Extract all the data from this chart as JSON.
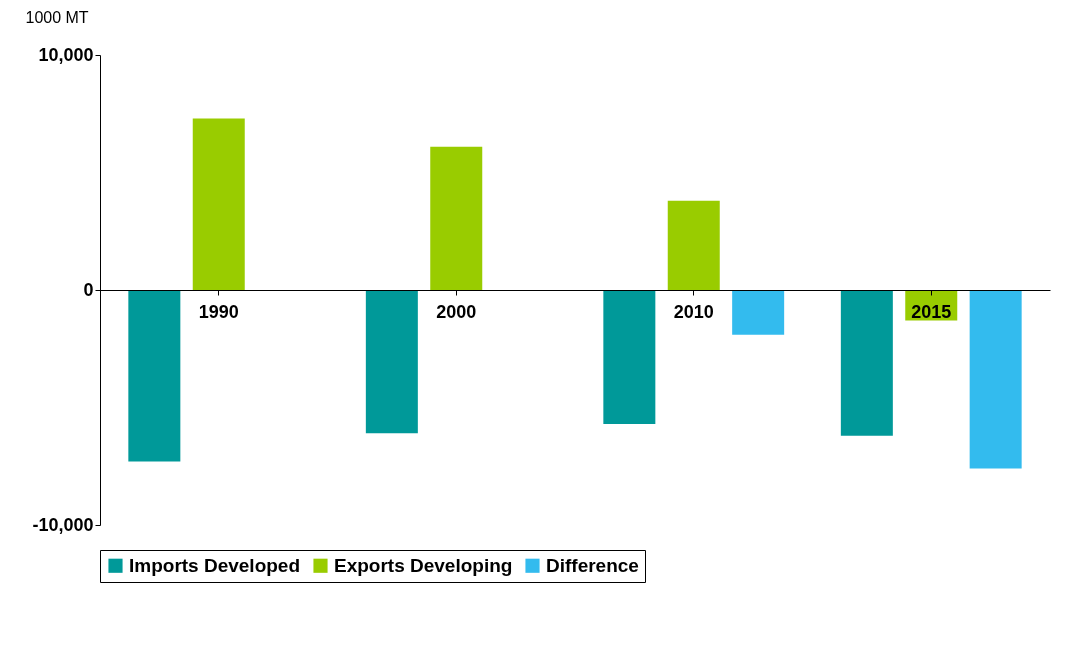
{
  "chart_data": {
    "type": "bar",
    "ylabel": "1000 MT",
    "categories": [
      "1990",
      "2000",
      "2010",
      "2015"
    ],
    "series": [
      {
        "name": "Imports Developed",
        "color": "#009999",
        "values": [
          -7300,
          -6100,
          -5700,
          -6200
        ]
      },
      {
        "name": "Exports Developing",
        "color": "#99cc00",
        "values": [
          7300,
          6100,
          3800,
          -1300
        ]
      },
      {
        "name": "Difference",
        "color": "#33bbee",
        "values": [
          0,
          0,
          -1900,
          -7600
        ]
      }
    ],
    "ylim": [
      -10000,
      10000
    ],
    "yticks": [
      {
        "value": -10000,
        "label": "-10,000"
      },
      0,
      {
        "value": 10000,
        "label": "10,000"
      }
    ],
    "legend": "bottom"
  }
}
